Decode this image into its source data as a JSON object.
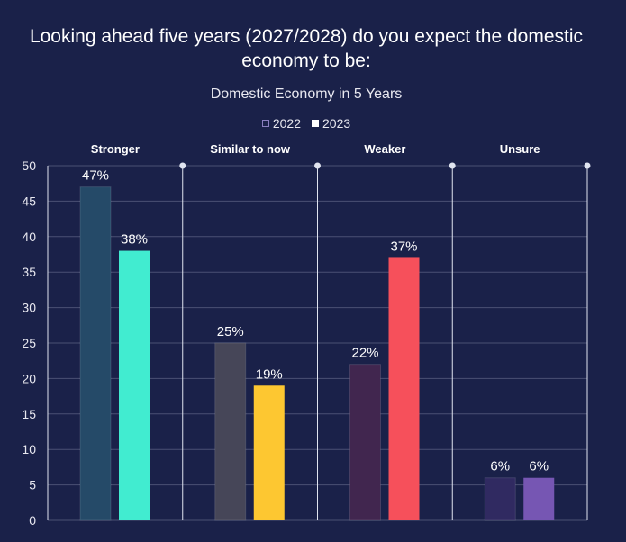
{
  "chart_data": {
    "type": "bar",
    "title": "Looking ahead five years (2027/2028) do you expect the domestic economy to be:",
    "subtitle": "Domestic Economy in 5 Years",
    "categories": [
      "Stronger",
      "Similar to now",
      "Weaker",
      "Unsure"
    ],
    "series": [
      {
        "name": "2022",
        "values": [
          47,
          25,
          22,
          6
        ],
        "labels": [
          "47%",
          "25%",
          "22%",
          "6%"
        ],
        "colors": [
          "#254a68",
          "#464658",
          "#41264f",
          "#302a61"
        ]
      },
      {
        "name": "2023",
        "values": [
          38,
          19,
          37,
          6
        ],
        "labels": [
          "38%",
          "19%",
          "37%",
          "6%"
        ],
        "colors": [
          "#41ecd0",
          "#fdc731",
          "#f6505b",
          "#7656b3"
        ]
      }
    ],
    "ylim": [
      0,
      50
    ],
    "yticks": [
      0,
      5,
      10,
      15,
      20,
      25,
      30,
      35,
      40,
      45,
      50
    ],
    "grid": true,
    "legend": "top-center"
  },
  "legend": {
    "items": [
      {
        "label": "2022"
      },
      {
        "label": "2023"
      }
    ]
  },
  "colors": {
    "background": "#1a2149",
    "gridline": "#4a5174",
    "divider": "#e0e4f0"
  }
}
